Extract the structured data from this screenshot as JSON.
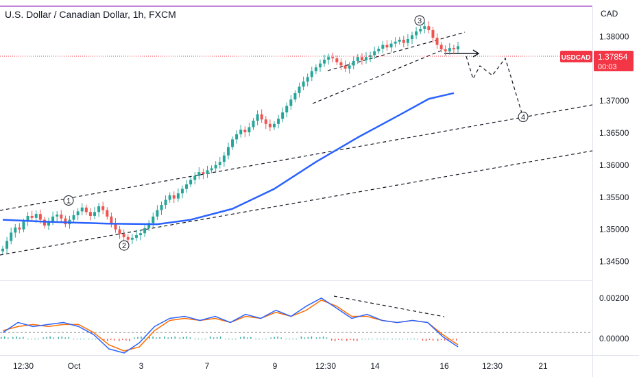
{
  "header": {
    "title": "U.S. Dollar / Canadian Dollar, 1h, FXCM",
    "currency": "CAD"
  },
  "price_tag": {
    "symbol": "USDCAD",
    "price": "1.37854",
    "countdown": "00:03",
    "color": "#f23645"
  },
  "colors": {
    "up": "#26a69a",
    "down": "#ef5350",
    "ma": "#2962ff",
    "osc_fast": "#2962ff",
    "osc_slow": "#ff6d00",
    "divider": "#c486d9"
  },
  "chart_data": [
    {
      "type": "line",
      "pane": "price",
      "y_axis_ticks": [
        "1.38000",
        "1.37500",
        "1.37000",
        "1.36500",
        "1.36000",
        "1.35500",
        "1.35000",
        "1.34500"
      ],
      "ylim": [
        1.3425,
        1.3844
      ],
      "x_axis_ticks": [
        "12:30",
        "Oct",
        "3",
        "7",
        "9",
        "12:30",
        "14",
        "16",
        "12:30",
        "21"
      ],
      "current_price": 1.37854,
      "series": [
        {
          "style": "candles",
          "close": [
            1.347,
            1.3482,
            1.3495,
            1.3503,
            1.35,
            1.3512,
            1.3521,
            1.3518,
            1.3524,
            1.3515,
            1.3506,
            1.3512,
            1.352,
            1.3523,
            1.3517,
            1.3508,
            1.3515,
            1.3522,
            1.3528,
            1.3534,
            1.3527,
            1.3521,
            1.3527,
            1.3536,
            1.353,
            1.352,
            1.351,
            1.35,
            1.3493,
            1.3488,
            1.3484,
            1.3487,
            1.3491,
            1.3494,
            1.3502,
            1.351,
            1.352,
            1.353,
            1.3538,
            1.3546,
            1.3553,
            1.3548,
            1.3556,
            1.3563,
            1.357,
            1.3577,
            1.3583,
            1.3589,
            1.3586,
            1.3592,
            1.3595,
            1.36,
            1.3605,
            1.3615,
            1.3628,
            1.364,
            1.3648,
            1.3655,
            1.3651,
            1.3659,
            1.3669,
            1.3679,
            1.3671,
            1.3664,
            1.3659,
            1.3664,
            1.3672,
            1.3682,
            1.3692,
            1.3702,
            1.3712,
            1.3722,
            1.373,
            1.3737,
            1.3746,
            1.3752,
            1.3758,
            1.3764,
            1.3768,
            1.3766,
            1.376,
            1.3755,
            1.375,
            1.3755,
            1.3762,
            1.3768,
            1.3763,
            1.3768,
            1.3771,
            1.3777,
            1.3781,
            1.3787,
            1.3783,
            1.3789,
            1.3792,
            1.3795,
            1.379,
            1.3796,
            1.3802,
            1.3808,
            1.3812,
            1.3816,
            1.381,
            1.3798,
            1.3787,
            1.378,
            1.3777,
            1.3782,
            1.378,
            1.3785
          ]
        },
        {
          "name": "",
          "style": "moving-average",
          "x_index": [
            0,
            10,
            25,
            37,
            45,
            55,
            65,
            75,
            85,
            95,
            102,
            108
          ],
          "values": [
            1.3515,
            1.3512,
            1.3509,
            1.3508,
            1.3515,
            1.3532,
            1.3563,
            1.3605,
            1.3643,
            1.3678,
            1.3703,
            1.3712
          ]
        }
      ],
      "annotations": [
        {
          "label": "1",
          "value": 1.3545
        },
        {
          "label": "2",
          "value": 1.3475
        },
        {
          "label": "3",
          "value": 1.3825
        },
        {
          "label": "4",
          "value": 1.3675
        }
      ]
    },
    {
      "type": "line",
      "pane": "oscillator",
      "y_axis_ticks": [
        "0.00200",
        "0.00000"
      ],
      "ylim": [
        -0.0006,
        0.0025
      ],
      "series": [
        {
          "name": "",
          "values": [
            0.0003,
            0.0008,
            0.0006,
            0.0007,
            0.0008,
            0.0006,
            0.0002,
            -0.0005,
            -0.0007,
            -0.0002,
            0.0006,
            0.001,
            0.0011,
            0.0009,
            0.0011,
            0.0008,
            0.0012,
            0.001,
            0.0014,
            0.0011,
            0.0016,
            0.002,
            0.0015,
            0.001,
            0.0012,
            0.0009,
            0.0008,
            0.0009,
            0.0008,
            0.0001,
            -0.0004
          ]
        },
        {
          "name": "",
          "values": [
            0.0004,
            0.0006,
            0.0007,
            0.0006,
            0.0007,
            0.0007,
            0.0003,
            -0.0003,
            -0.0006,
            -0.0004,
            0.0004,
            0.0009,
            0.001,
            0.0009,
            0.001,
            0.0008,
            0.0011,
            0.001,
            0.0013,
            0.0011,
            0.0014,
            0.0019,
            0.0016,
            0.0011,
            0.0011,
            0.0009,
            0.0008,
            0.0009,
            0.0008,
            0.0002,
            -0.0003
          ]
        },
        {
          "name": "",
          "style": "histogram",
          "values": [
            0.0001,
            0.0001,
            0.0,
            0.0001,
            0.0001,
            0.0,
            0.0,
            -0.0001,
            -0.0001,
            0.0001,
            0.0001,
            0.0001,
            0.0001,
            0.0,
            0.0001,
            0.0,
            0.0001,
            0.0,
            0.0001,
            0.0,
            0.0001,
            0.0001,
            -0.0001,
            -0.0001,
            0.0,
            0.0,
            0.0,
            0.0,
            -0.0001,
            -0.0001,
            -0.0001
          ]
        }
      ]
    }
  ]
}
